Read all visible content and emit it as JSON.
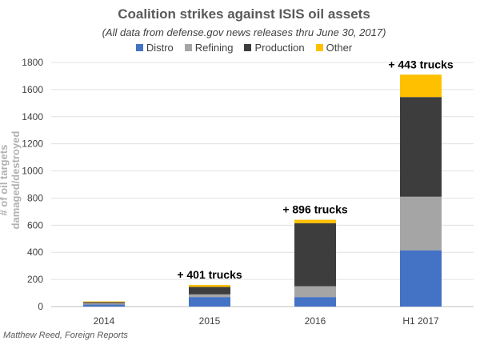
{
  "chart_data": {
    "type": "bar",
    "stacked": true,
    "title": "Coalition strikes against ISIS oil assets",
    "subtitle": "(All data from defense.gov news releases thru June 30, 2017)",
    "ylabel": "# of oil targets damaged/destroyed",
    "xlabel": "",
    "ylim": [
      0,
      1800
    ],
    "yticks": [
      0,
      200,
      400,
      600,
      800,
      1000,
      1200,
      1400,
      1600,
      1800
    ],
    "grid": true,
    "legend_position": "top",
    "categories": [
      "2014",
      "2015",
      "2016",
      "H1 2017"
    ],
    "series": [
      {
        "name": "Distro",
        "color": "#4472C4",
        "values": [
          15,
          70,
          70,
          415
        ]
      },
      {
        "name": "Refining",
        "color": "#A5A5A5",
        "values": [
          10,
          20,
          80,
          395
        ]
      },
      {
        "name": "Production",
        "color": "#3D3D3D",
        "values": [
          8,
          55,
          465,
          735
        ]
      },
      {
        "name": "Other",
        "color": "#FFC000",
        "values": [
          5,
          15,
          25,
          165
        ]
      }
    ],
    "annotations": [
      {
        "category": "2015",
        "text": "+ 401 trucks"
      },
      {
        "category": "2016",
        "text": "+ 896 trucks"
      },
      {
        "category": "H1 2017",
        "text": "+ 443 trucks"
      }
    ]
  },
  "credit": "Matthew Reed, Foreign Reports"
}
